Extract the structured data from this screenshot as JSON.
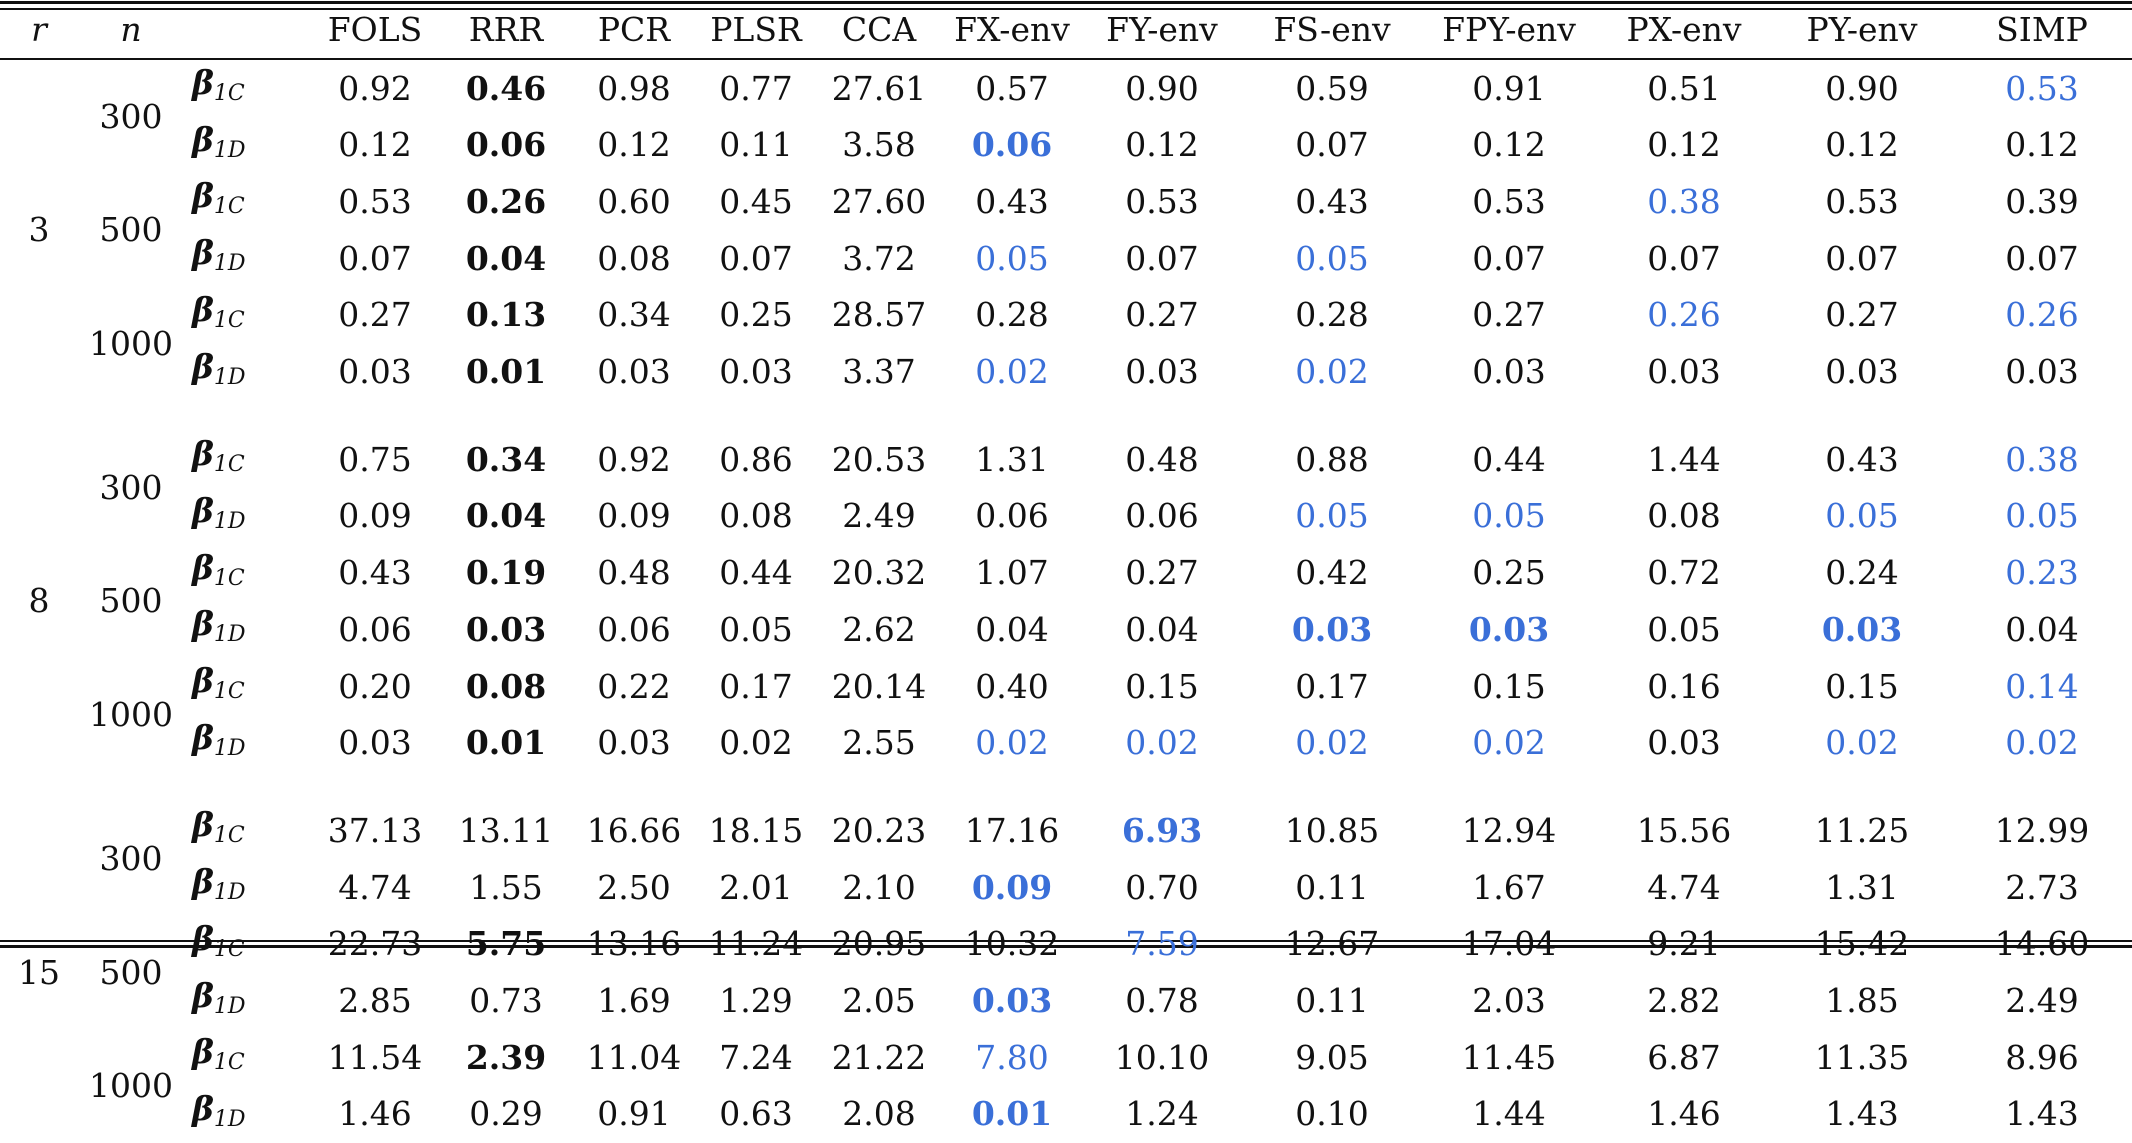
{
  "table": {
    "headers": [
      "r",
      "n",
      "",
      "FOLS",
      "RRR",
      "PCR",
      "PLSR",
      "CCA",
      "FX-env",
      "FY-env",
      "FS-env",
      "FPY-env",
      "PX-env",
      "PY-env",
      "SIMP"
    ],
    "beta_sub": {
      "C": "1C",
      "D": "1D"
    },
    "beta_symbol": "β",
    "colors": {
      "highlight_blue": "#3a6fd8",
      "text": "#111111"
    },
    "blocks": [
      {
        "r": "3",
        "groups": [
          {
            "n": "300",
            "rows": [
              {
                "beta": "C",
                "values": [
                  "0.92",
                  "0.46",
                  "0.98",
                  "0.77",
                  "27.61",
                  "0.57",
                  "0.90",
                  "0.59",
                  "0.91",
                  "0.51",
                  "0.90",
                  "0.53"
                ],
                "bold": [
                  1
                ],
                "blue": [
                  11
                ]
              },
              {
                "beta": "D",
                "values": [
                  "0.12",
                  "0.06",
                  "0.12",
                  "0.11",
                  "3.58",
                  "0.06",
                  "0.12",
                  "0.07",
                  "0.12",
                  "0.12",
                  "0.12",
                  "0.12"
                ],
                "bold": [
                  1,
                  5
                ],
                "blue": [
                  5
                ]
              }
            ]
          },
          {
            "n": "500",
            "rows": [
              {
                "beta": "C",
                "values": [
                  "0.53",
                  "0.26",
                  "0.60",
                  "0.45",
                  "27.60",
                  "0.43",
                  "0.53",
                  "0.43",
                  "0.53",
                  "0.38",
                  "0.53",
                  "0.39"
                ],
                "bold": [
                  1
                ],
                "blue": [
                  9
                ]
              },
              {
                "beta": "D",
                "values": [
                  "0.07",
                  "0.04",
                  "0.08",
                  "0.07",
                  "3.72",
                  "0.05",
                  "0.07",
                  "0.05",
                  "0.07",
                  "0.07",
                  "0.07",
                  "0.07"
                ],
                "bold": [
                  1
                ],
                "blue": [
                  5,
                  7
                ]
              }
            ]
          },
          {
            "n": "1000",
            "rows": [
              {
                "beta": "C",
                "values": [
                  "0.27",
                  "0.13",
                  "0.34",
                  "0.25",
                  "28.57",
                  "0.28",
                  "0.27",
                  "0.28",
                  "0.27",
                  "0.26",
                  "0.27",
                  "0.26"
                ],
                "bold": [
                  1
                ],
                "blue": [
                  9,
                  11
                ]
              },
              {
                "beta": "D",
                "values": [
                  "0.03",
                  "0.01",
                  "0.03",
                  "0.03",
                  "3.37",
                  "0.02",
                  "0.03",
                  "0.02",
                  "0.03",
                  "0.03",
                  "0.03",
                  "0.03"
                ],
                "bold": [
                  1
                ],
                "blue": [
                  5,
                  7
                ]
              }
            ]
          }
        ]
      },
      {
        "r": "8",
        "groups": [
          {
            "n": "300",
            "rows": [
              {
                "beta": "C",
                "values": [
                  "0.75",
                  "0.34",
                  "0.92",
                  "0.86",
                  "20.53",
                  "1.31",
                  "0.48",
                  "0.88",
                  "0.44",
                  "1.44",
                  "0.43",
                  "0.38"
                ],
                "bold": [
                  1
                ],
                "blue": [
                  11
                ]
              },
              {
                "beta": "D",
                "values": [
                  "0.09",
                  "0.04",
                  "0.09",
                  "0.08",
                  "2.49",
                  "0.06",
                  "0.06",
                  "0.05",
                  "0.05",
                  "0.08",
                  "0.05",
                  "0.05"
                ],
                "bold": [
                  1
                ],
                "blue": [
                  7,
                  8,
                  10,
                  11
                ]
              }
            ]
          },
          {
            "n": "500",
            "rows": [
              {
                "beta": "C",
                "values": [
                  "0.43",
                  "0.19",
                  "0.48",
                  "0.44",
                  "20.32",
                  "1.07",
                  "0.27",
                  "0.42",
                  "0.25",
                  "0.72",
                  "0.24",
                  "0.23"
                ],
                "bold": [
                  1
                ],
                "blue": [
                  11
                ]
              },
              {
                "beta": "D",
                "values": [
                  "0.06",
                  "0.03",
                  "0.06",
                  "0.05",
                  "2.62",
                  "0.04",
                  "0.04",
                  "0.03",
                  "0.03",
                  "0.05",
                  "0.03",
                  "0.04"
                ],
                "bold": [
                  1,
                  7,
                  8,
                  10
                ],
                "blue": [
                  7,
                  8,
                  10
                ]
              }
            ]
          },
          {
            "n": "1000",
            "rows": [
              {
                "beta": "C",
                "values": [
                  "0.20",
                  "0.08",
                  "0.22",
                  "0.17",
                  "20.14",
                  "0.40",
                  "0.15",
                  "0.17",
                  "0.15",
                  "0.16",
                  "0.15",
                  "0.14"
                ],
                "bold": [
                  1
                ],
                "blue": [
                  11
                ]
              },
              {
                "beta": "D",
                "values": [
                  "0.03",
                  "0.01",
                  "0.03",
                  "0.02",
                  "2.55",
                  "0.02",
                  "0.02",
                  "0.02",
                  "0.02",
                  "0.03",
                  "0.02",
                  "0.02"
                ],
                "bold": [
                  1
                ],
                "blue": [
                  5,
                  6,
                  7,
                  8,
                  10,
                  11
                ]
              }
            ]
          }
        ]
      },
      {
        "r": "15",
        "groups": [
          {
            "n": "300",
            "rows": [
              {
                "beta": "C",
                "values": [
                  "37.13",
                  "13.11",
                  "16.66",
                  "18.15",
                  "20.23",
                  "17.16",
                  "6.93",
                  "10.85",
                  "12.94",
                  "15.56",
                  "11.25",
                  "12.99"
                ],
                "bold": [
                  6
                ],
                "blue": [
                  6
                ]
              },
              {
                "beta": "D",
                "values": [
                  "4.74",
                  "1.55",
                  "2.50",
                  "2.01",
                  "2.10",
                  "0.09",
                  "0.70",
                  "0.11",
                  "1.67",
                  "4.74",
                  "1.31",
                  "2.73"
                ],
                "bold": [
                  5
                ],
                "blue": [
                  5
                ]
              }
            ]
          },
          {
            "n": "500",
            "rows": [
              {
                "beta": "C",
                "values": [
                  "22.73",
                  "5.75",
                  "13.16",
                  "11.24",
                  "20.95",
                  "10.32",
                  "7.59",
                  "12.67",
                  "17.04",
                  "9.21",
                  "15.42",
                  "14.60"
                ],
                "bold": [
                  1
                ],
                "blue": [
                  6
                ]
              },
              {
                "beta": "D",
                "values": [
                  "2.85",
                  "0.73",
                  "1.69",
                  "1.29",
                  "2.05",
                  "0.03",
                  "0.78",
                  "0.11",
                  "2.03",
                  "2.82",
                  "1.85",
                  "2.49"
                ],
                "bold": [
                  5
                ],
                "blue": [
                  5
                ]
              }
            ]
          },
          {
            "n": "1000",
            "rows": [
              {
                "beta": "C",
                "values": [
                  "11.54",
                  "2.39",
                  "11.04",
                  "7.24",
                  "21.22",
                  "7.80",
                  "10.10",
                  "9.05",
                  "11.45",
                  "6.87",
                  "11.35",
                  "8.96"
                ],
                "bold": [
                  1
                ],
                "blue": [
                  5
                ]
              },
              {
                "beta": "D",
                "values": [
                  "1.46",
                  "0.29",
                  "0.91",
                  "0.63",
                  "2.08",
                  "0.01",
                  "1.24",
                  "0.10",
                  "1.44",
                  "1.46",
                  "1.43",
                  "1.43"
                ],
                "bold": [
                  5
                ],
                "blue": [
                  5
                ]
              }
            ]
          }
        ]
      }
    ]
  }
}
